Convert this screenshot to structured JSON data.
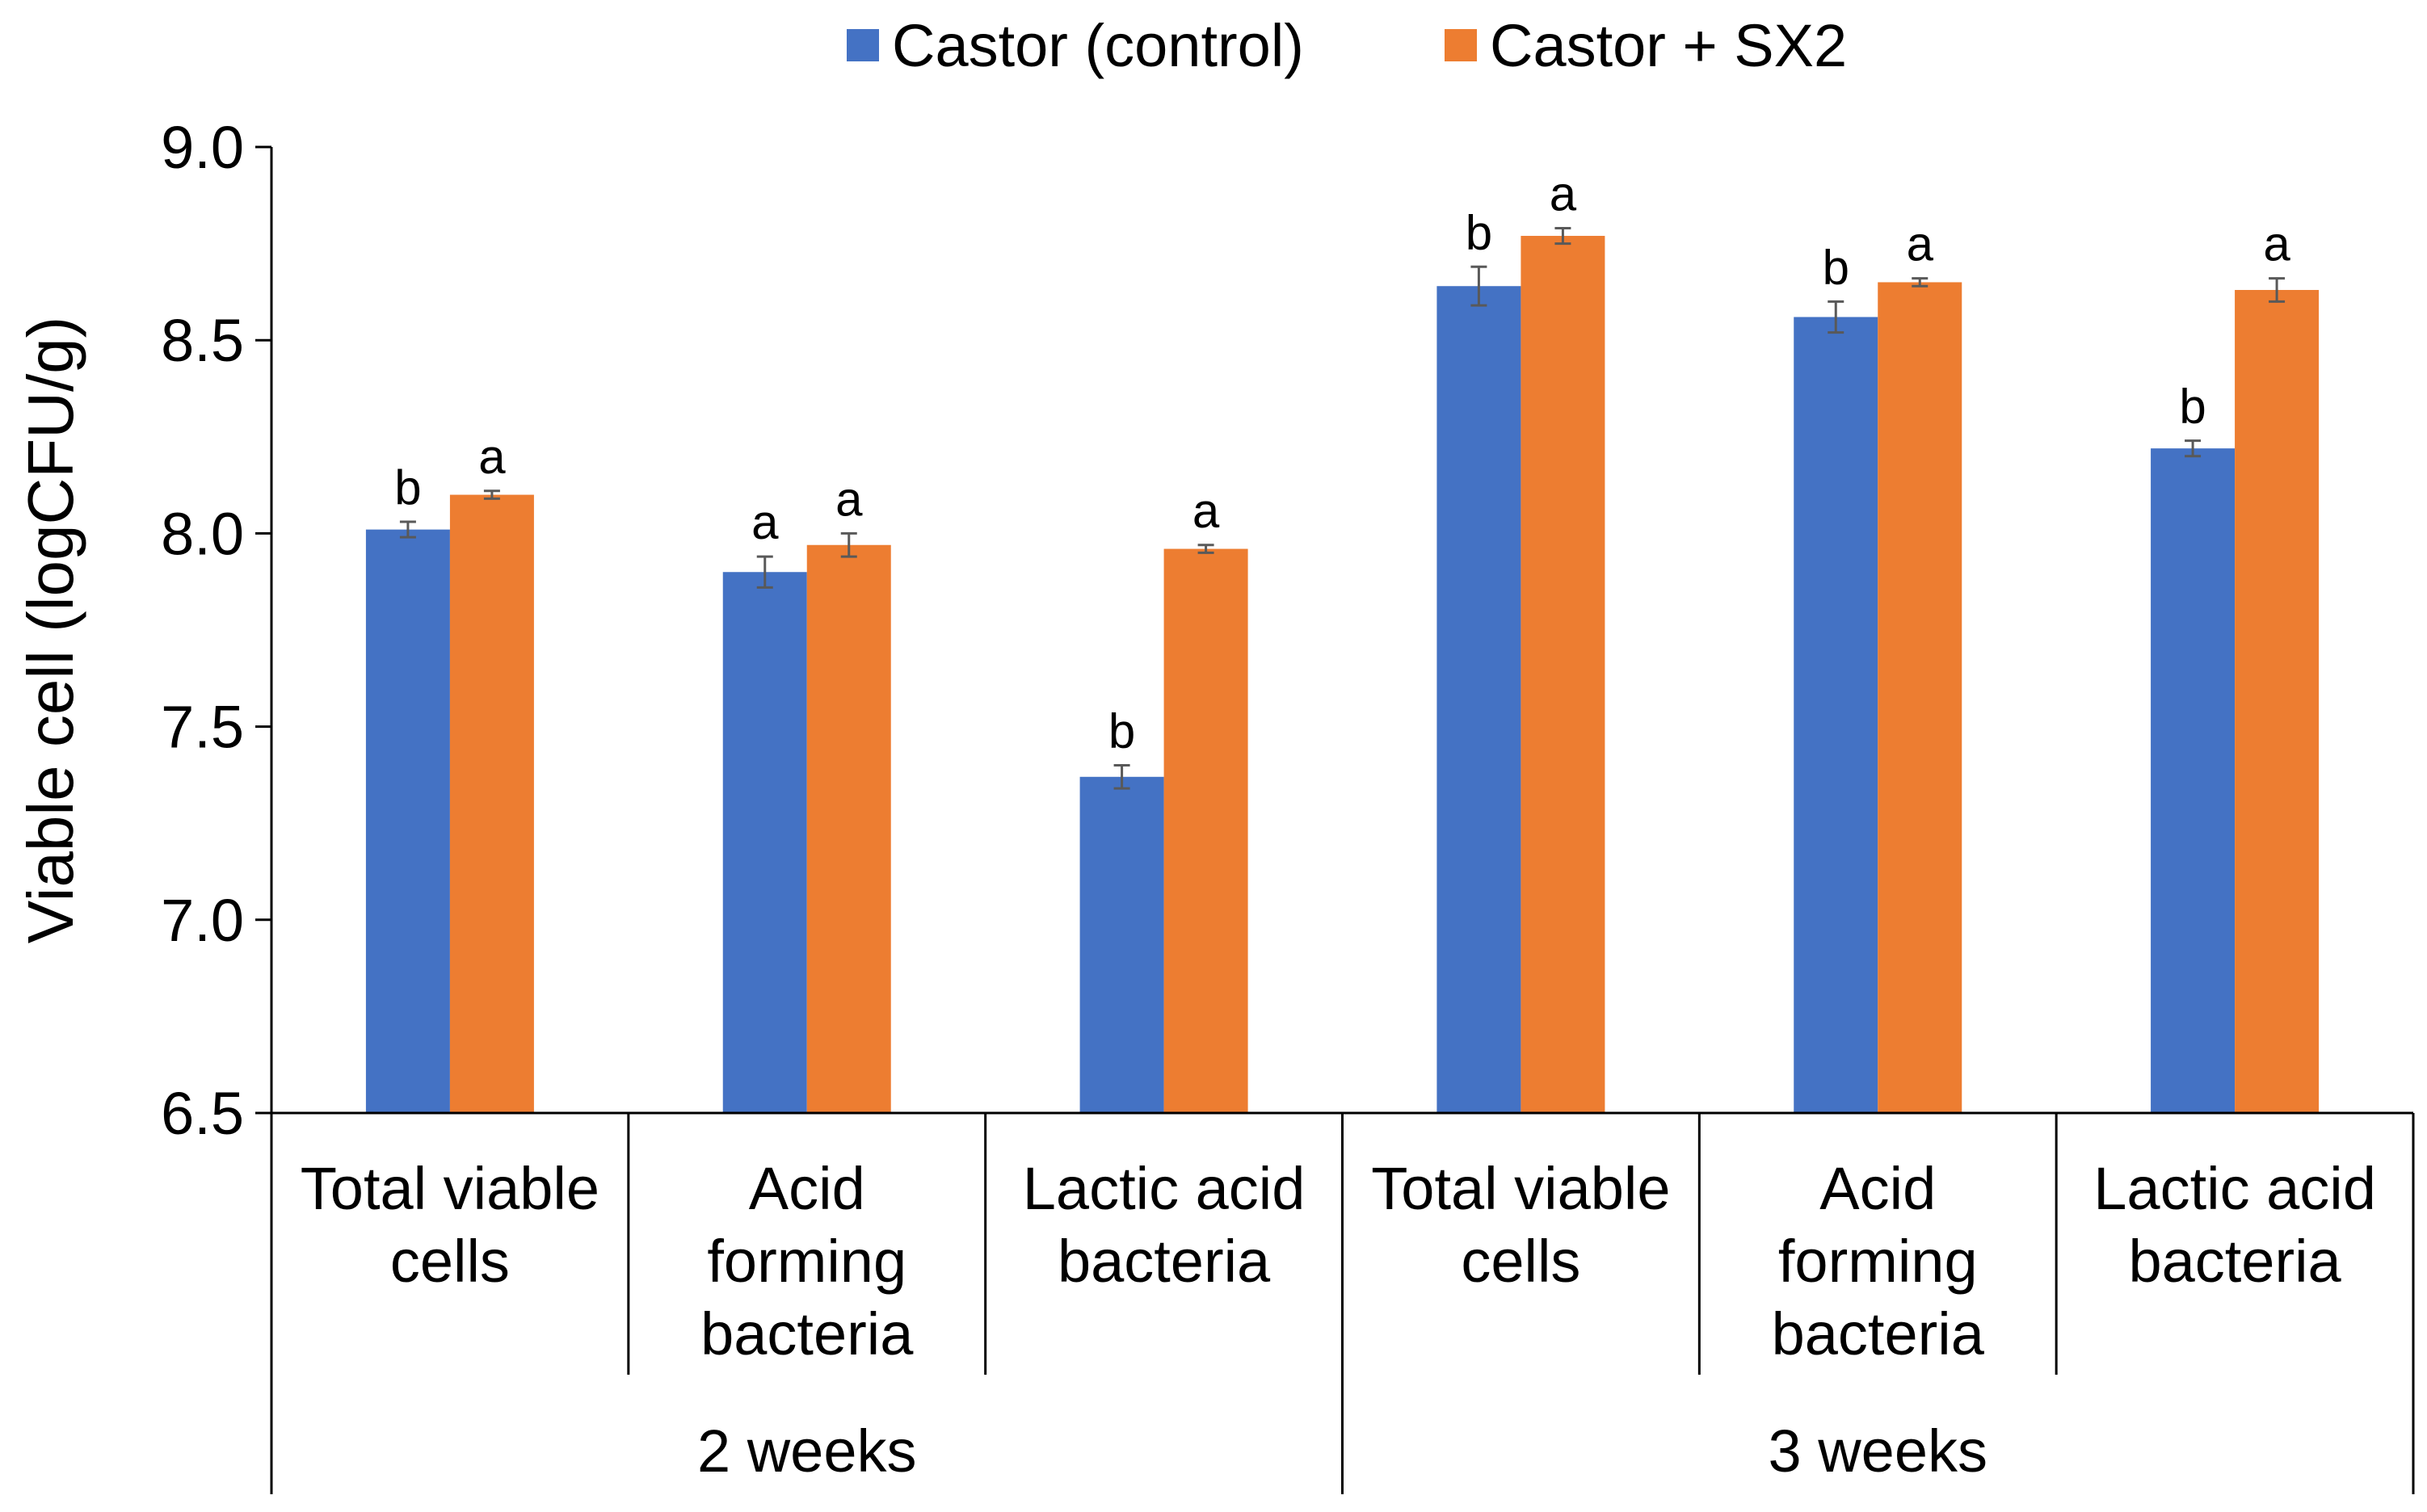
{
  "chart_data": {
    "type": "bar",
    "ylabel": "Viable cell (logCFU/g)",
    "ylim": [
      6.5,
      9.0
    ],
    "yticks": [
      "6.5",
      "7.0",
      "7.5",
      "8.0",
      "8.5",
      "9.0"
    ],
    "ytick_values": [
      6.5,
      7.0,
      7.5,
      8.0,
      8.5,
      9.0
    ],
    "legend_position": "top-center",
    "groups": [
      {
        "label": "2 weeks",
        "categories": [
          {
            "lines": [
              "Total viable",
              "cells"
            ]
          },
          {
            "lines": [
              "Acid",
              "forming",
              "bacteria"
            ]
          },
          {
            "lines": [
              "Lactic acid",
              "bacteria"
            ]
          }
        ]
      },
      {
        "label": "3 weeks",
        "categories": [
          {
            "lines": [
              "Total viable",
              "cells"
            ]
          },
          {
            "lines": [
              "Acid",
              "forming",
              "bacteria"
            ]
          },
          {
            "lines": [
              "Lactic acid",
              "bacteria"
            ]
          }
        ]
      }
    ],
    "series": [
      {
        "name": "Castor (control)",
        "color": "#4472C4",
        "values": [
          8.01,
          7.9,
          7.37,
          8.64,
          8.56,
          8.22
        ],
        "errors": [
          0.02,
          0.04,
          0.03,
          0.05,
          0.04,
          0.02
        ],
        "letters": [
          "b",
          "a",
          "b",
          "b",
          "b",
          "b"
        ]
      },
      {
        "name": "Castor + SX2",
        "color": "#ED7D31",
        "values": [
          8.1,
          7.97,
          7.96,
          8.77,
          8.65,
          8.63
        ],
        "errors": [
          0.01,
          0.03,
          0.01,
          0.02,
          0.01,
          0.03
        ],
        "letters": [
          "a",
          "a",
          "a",
          "a",
          "a",
          "a"
        ]
      }
    ]
  }
}
